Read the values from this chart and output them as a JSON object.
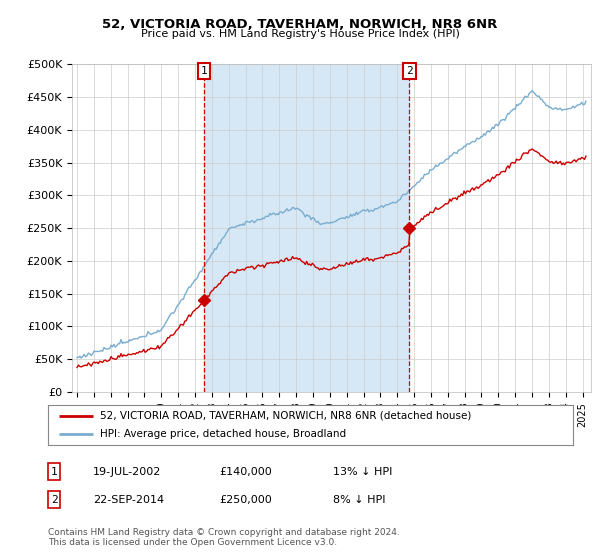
{
  "title": "52, VICTORIA ROAD, TAVERHAM, NORWICH, NR8 6NR",
  "subtitle": "Price paid vs. HM Land Registry's House Price Index (HPI)",
  "ylabel_ticks": [
    "£0",
    "£50K",
    "£100K",
    "£150K",
    "£200K",
    "£250K",
    "£300K",
    "£350K",
    "£400K",
    "£450K",
    "£500K"
  ],
  "ytick_values": [
    0,
    50000,
    100000,
    150000,
    200000,
    250000,
    300000,
    350000,
    400000,
    450000,
    500000
  ],
  "ylim": [
    0,
    500000
  ],
  "sale1_x": 2002.54,
  "sale1_price": 140000,
  "sale1_label": "19-JUL-2002",
  "sale1_hpi": "13% ↓ HPI",
  "sale2_x": 2014.72,
  "sale2_price": 250000,
  "sale2_label": "22-SEP-2014",
  "sale2_hpi": "8% ↓ HPI",
  "legend_house": "52, VICTORIA ROAD, TAVERHAM, NORWICH, NR8 6NR (detached house)",
  "legend_hpi": "HPI: Average price, detached house, Broadland",
  "footnote": "Contains HM Land Registry data © Crown copyright and database right 2024.\nThis data is licensed under the Open Government Licence v3.0.",
  "house_color": "#cc0000",
  "hpi_color": "#7aadcf",
  "vline_color": "#cc0000",
  "shade_color": "#d6e8f5",
  "background_color": "#ffffff",
  "grid_color": "#cccccc"
}
